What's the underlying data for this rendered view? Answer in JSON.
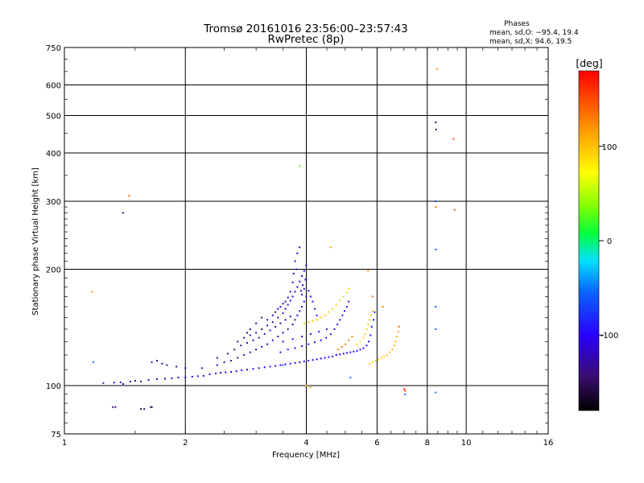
{
  "chart_data": {
    "type": "scatter",
    "title": "Tromsø 20161016 23:56:00–23:57:43",
    "subtitle": "RwPretec (8p)",
    "xlabel": "Frequency [MHz]",
    "ylabel": "Stationary phase Virtual Height [km]",
    "xscale": "log",
    "yscale": "log",
    "xlim": [
      1,
      16
    ],
    "ylim": [
      75,
      750
    ],
    "x_ticks": [
      1,
      2,
      4,
      6,
      8,
      10,
      16
    ],
    "y_ticks": [
      75,
      100,
      200,
      300,
      400,
      500,
      600,
      750
    ],
    "grid": true,
    "legend_title": "Phases",
    "legend": [
      "mean, sd,O: −95.4, 19.4",
      "mean, sd,X:  94.6, 19.5"
    ],
    "legend_position": "top-right",
    "colorbar": {
      "label": "[deg]",
      "range": [
        -180,
        180
      ],
      "ticks": [
        100,
        0,
        -100
      ]
    },
    "series": [
      {
        "description_mode": "O",
        "points": [
          [
            1.25,
            101.5,
            -85
          ],
          [
            1.33,
            101.8,
            -110
          ],
          [
            1.38,
            102,
            -120
          ],
          [
            1.4,
            101,
            -125
          ],
          [
            1.46,
            102.5,
            -130
          ],
          [
            1.5,
            103,
            -130
          ],
          [
            1.55,
            102.5,
            -132
          ],
          [
            1.62,
            103.5,
            -130
          ],
          [
            1.7,
            104,
            -128
          ],
          [
            1.78,
            104.2,
            -125
          ],
          [
            1.85,
            104.5,
            -123
          ],
          [
            1.92,
            105,
            -120
          ],
          [
            2.0,
            105,
            -118
          ],
          [
            2.08,
            105.5,
            -116
          ],
          [
            2.15,
            105.8,
            -115
          ],
          [
            2.22,
            106,
            -114
          ],
          [
            2.3,
            107,
            -112
          ],
          [
            2.38,
            107.5,
            -111
          ],
          [
            2.45,
            108,
            -110
          ],
          [
            2.52,
            108.2,
            -110
          ],
          [
            2.6,
            108.5,
            -109
          ],
          [
            2.68,
            109,
            -108
          ],
          [
            2.76,
            109.5,
            -107
          ],
          [
            2.85,
            110,
            -105
          ],
          [
            2.95,
            110.5,
            -104
          ],
          [
            3.05,
            111,
            -103
          ],
          [
            3.15,
            111.5,
            -102
          ],
          [
            3.25,
            112,
            -102
          ],
          [
            3.35,
            112.5,
            -101
          ],
          [
            3.45,
            113,
            -100
          ],
          [
            3.55,
            113.5,
            -100
          ],
          [
            3.65,
            114,
            -100
          ],
          [
            3.75,
            114.5,
            -100
          ],
          [
            3.85,
            115,
            -100
          ],
          [
            3.95,
            115.5,
            -99
          ],
          [
            4.05,
            116,
            -99
          ],
          [
            4.15,
            116.5,
            -99
          ],
          [
            4.25,
            117,
            -99
          ],
          [
            4.35,
            117.5,
            -98
          ],
          [
            4.45,
            118,
            -98
          ],
          [
            4.55,
            118.5,
            -98
          ],
          [
            4.65,
            119,
            -98
          ],
          [
            4.75,
            120,
            -97
          ],
          [
            4.85,
            120.5,
            -97
          ],
          [
            4.95,
            121,
            -97
          ],
          [
            5.05,
            121.5,
            -96
          ],
          [
            5.15,
            122,
            -96
          ],
          [
            5.25,
            122.5,
            -96
          ],
          [
            5.35,
            123,
            -95
          ],
          [
            5.45,
            124,
            -95
          ],
          [
            5.55,
            125,
            -94
          ],
          [
            5.65,
            127,
            -93
          ],
          [
            5.72,
            130,
            -92
          ],
          [
            5.78,
            135,
            -91
          ],
          [
            5.82,
            142,
            -90
          ],
          [
            5.88,
            148,
            -90
          ],
          [
            5.92,
            155,
            -90
          ],
          [
            3.45,
            122,
            -100
          ],
          [
            3.6,
            124,
            -99
          ],
          [
            3.75,
            125,
            -98
          ],
          [
            3.9,
            126.5,
            -98
          ],
          [
            4.05,
            128,
            -97
          ],
          [
            4.2,
            129.5,
            -96
          ],
          [
            4.35,
            131,
            -96
          ],
          [
            4.48,
            133,
            -95
          ],
          [
            4.6,
            136,
            -95
          ],
          [
            4.7,
            140,
            -94
          ],
          [
            4.78,
            144,
            -93
          ],
          [
            4.85,
            148,
            -93
          ],
          [
            4.92,
            152,
            -92
          ],
          [
            4.98,
            156,
            -92
          ],
          [
            5.05,
            160,
            -91
          ],
          [
            5.1,
            165,
            -91
          ],
          [
            3.5,
            130,
            -98
          ],
          [
            3.7,
            132,
            -97
          ],
          [
            3.9,
            134,
            -96
          ],
          [
            4.1,
            136,
            -96
          ],
          [
            4.3,
            138,
            -95
          ],
          [
            4.5,
            140,
            -94
          ],
          [
            1.65,
            115,
            -130
          ],
          [
            1.7,
            116,
            -132
          ],
          [
            1.75,
            114,
            -131
          ],
          [
            1.8,
            113,
            -130
          ],
          [
            1.9,
            112,
            -130
          ],
          [
            2.0,
            111,
            -128
          ],
          [
            2.2,
            111,
            -128
          ],
          [
            2.4,
            113,
            -127
          ],
          [
            2.5,
            115,
            -130
          ],
          [
            2.6,
            116,
            -132
          ],
          [
            2.7,
            118,
            -130
          ],
          [
            2.8,
            120,
            -128
          ],
          [
            2.9,
            122,
            -130
          ],
          [
            3.0,
            124,
            -132
          ],
          [
            3.1,
            126,
            -128
          ],
          [
            3.2,
            128,
            -130
          ],
          [
            3.3,
            131,
            -128
          ],
          [
            3.4,
            134,
            -127
          ],
          [
            3.5,
            137,
            -126
          ],
          [
            3.6,
            140,
            -125
          ],
          [
            3.7,
            144,
            -124
          ],
          [
            3.75,
            148,
            -123
          ],
          [
            3.8,
            152,
            -122
          ],
          [
            3.85,
            156,
            -121
          ],
          [
            3.9,
            160,
            -120
          ],
          [
            3.95,
            165,
            -118
          ],
          [
            4.0,
            170,
            -117
          ],
          [
            2.7,
            130,
            -126
          ],
          [
            2.8,
            133,
            -128
          ],
          [
            2.9,
            135,
            -130
          ],
          [
            3.0,
            137,
            -129
          ],
          [
            3.1,
            140,
            -128
          ],
          [
            3.2,
            143,
            -127
          ],
          [
            3.3,
            146,
            -126
          ],
          [
            3.4,
            150,
            -125
          ],
          [
            3.5,
            154,
            -124
          ],
          [
            3.55,
            158,
            -123
          ],
          [
            3.6,
            162,
            -122
          ],
          [
            3.65,
            166,
            -121
          ],
          [
            3.7,
            170,
            -120
          ],
          [
            3.75,
            175,
            -119
          ],
          [
            3.8,
            180,
            -118
          ],
          [
            3.85,
            186,
            -117
          ],
          [
            3.9,
            192,
            -116
          ],
          [
            3.95,
            198,
            -115
          ],
          [
            4.0,
            205,
            -113
          ],
          [
            3.75,
            210,
            -116
          ],
          [
            3.8,
            220,
            -115
          ],
          [
            3.85,
            228,
            -114
          ],
          [
            2.4,
            118,
            -125
          ],
          [
            2.55,
            121,
            -128
          ],
          [
            2.65,
            124,
            -130
          ],
          [
            2.75,
            127,
            -131
          ],
          [
            2.85,
            129,
            -130
          ],
          [
            2.95,
            131,
            -129
          ],
          [
            3.05,
            133,
            -128
          ],
          [
            3.15,
            136,
            -127
          ],
          [
            3.25,
            139,
            -126
          ],
          [
            3.35,
            142,
            -125
          ],
          [
            3.45,
            145,
            -124
          ],
          [
            3.55,
            148,
            -123
          ],
          [
            3.65,
            151,
            -122
          ],
          [
            3.35,
            155,
            -124
          ],
          [
            3.45,
            160,
            -123
          ],
          [
            3.55,
            165,
            -122
          ],
          [
            3.65,
            175,
            -121
          ],
          [
            3.7,
            185,
            -120
          ],
          [
            3.72,
            195,
            -119
          ],
          [
            3.78,
            200,
            -118
          ],
          [
            3.88,
            176,
            -116
          ],
          [
            3.92,
            182,
            -115
          ],
          [
            3.98,
            188,
            -114
          ],
          [
            3.2,
            148,
            -125
          ],
          [
            3.3,
            152,
            -124
          ],
          [
            3.4,
            158,
            -123
          ],
          [
            3.5,
            163,
            -122
          ],
          [
            3.6,
            169,
            -121
          ],
          [
            3.1,
            150,
            -126
          ],
          [
            3.0,
            145,
            -127
          ],
          [
            2.9,
            140,
            -128
          ],
          [
            2.85,
            137,
            -129
          ],
          [
            3.9,
            172,
            -117
          ],
          [
            3.95,
            178,
            -116
          ],
          [
            4.05,
            176,
            -114
          ],
          [
            4.1,
            170,
            -112
          ],
          [
            4.15,
            165,
            -110
          ],
          [
            4.2,
            158,
            -108
          ],
          [
            4.25,
            152,
            -106
          ],
          [
            1.32,
            88,
            -140
          ],
          [
            1.34,
            88,
            -140
          ],
          [
            1.55,
            87,
            -135
          ],
          [
            1.58,
            87,
            -135
          ],
          [
            1.64,
            88,
            -138
          ],
          [
            1.65,
            88,
            -138
          ],
          [
            1.4,
            280,
            -120
          ],
          [
            8.4,
            480,
            -130
          ],
          [
            8.42,
            460,
            -130
          ],
          [
            1.18,
            115,
            -50
          ]
        ]
      },
      {
        "description_mode": "X",
        "points": [
          [
            3.95,
            145,
            100
          ],
          [
            4.05,
            146,
            100
          ],
          [
            4.15,
            147,
            100
          ],
          [
            4.25,
            148,
            98
          ],
          [
            4.35,
            150,
            98
          ],
          [
            4.45,
            152,
            97
          ],
          [
            4.55,
            155,
            96
          ],
          [
            4.65,
            158,
            95
          ],
          [
            4.75,
            162,
            95
          ],
          [
            4.85,
            166,
            94
          ],
          [
            4.95,
            170,
            94
          ],
          [
            5.05,
            174,
            93
          ],
          [
            5.1,
            178,
            93
          ],
          [
            5.35,
            128,
            90
          ],
          [
            5.45,
            130,
            90
          ],
          [
            5.55,
            133,
            92
          ],
          [
            5.6,
            136,
            94
          ],
          [
            5.65,
            140,
            96
          ],
          [
            5.7,
            144,
            98
          ],
          [
            5.75,
            148,
            100
          ],
          [
            5.8,
            152,
            102
          ],
          [
            5.85,
            156,
            104
          ],
          [
            4.8,
            124,
            130
          ],
          [
            4.9,
            126,
            132
          ],
          [
            5.0,
            128,
            130
          ],
          [
            5.1,
            131,
            128
          ],
          [
            5.2,
            134,
            126
          ],
          [
            5.75,
            114,
            95
          ],
          [
            5.85,
            115,
            96
          ],
          [
            5.95,
            116,
            96
          ],
          [
            6.05,
            117,
            97
          ],
          [
            6.15,
            118,
            98
          ],
          [
            6.25,
            119,
            99
          ],
          [
            6.35,
            120,
            100
          ],
          [
            6.45,
            122,
            102
          ],
          [
            6.55,
            124,
            104
          ],
          [
            6.62,
            127,
            106
          ],
          [
            6.68,
            130,
            108
          ],
          [
            6.72,
            134,
            110
          ],
          [
            6.78,
            138,
            112
          ],
          [
            4.0,
            100,
            105
          ],
          [
            4.1,
            99,
            104
          ],
          [
            4.6,
            228,
            110
          ],
          [
            5.7,
            198,
            120
          ],
          [
            6.2,
            160,
            130
          ],
          [
            6.8,
            142,
            140
          ],
          [
            7.0,
            98,
            165
          ],
          [
            7.05,
            97,
            165
          ],
          [
            8.45,
            660,
            130
          ],
          [
            8.4,
            290,
            135
          ],
          [
            9.3,
            435,
            150
          ],
          [
            9.35,
            285,
            150
          ],
          [
            1.45,
            310,
            140
          ],
          [
            1.17,
            175,
            115
          ],
          [
            5.85,
            170,
            135
          ],
          [
            3.85,
            370,
            30
          ]
        ]
      },
      {
        "description_mode": "other",
        "points": [
          [
            8.4,
            300,
            -60
          ],
          [
            8.4,
            225,
            -60
          ],
          [
            8.4,
            160,
            -55
          ],
          [
            8.4,
            140,
            -55
          ],
          [
            8.4,
            96,
            -50
          ],
          [
            7.05,
            95,
            -55
          ],
          [
            5.15,
            105,
            -50
          ],
          [
            3.5,
            113,
            -60
          ]
        ]
      }
    ]
  }
}
